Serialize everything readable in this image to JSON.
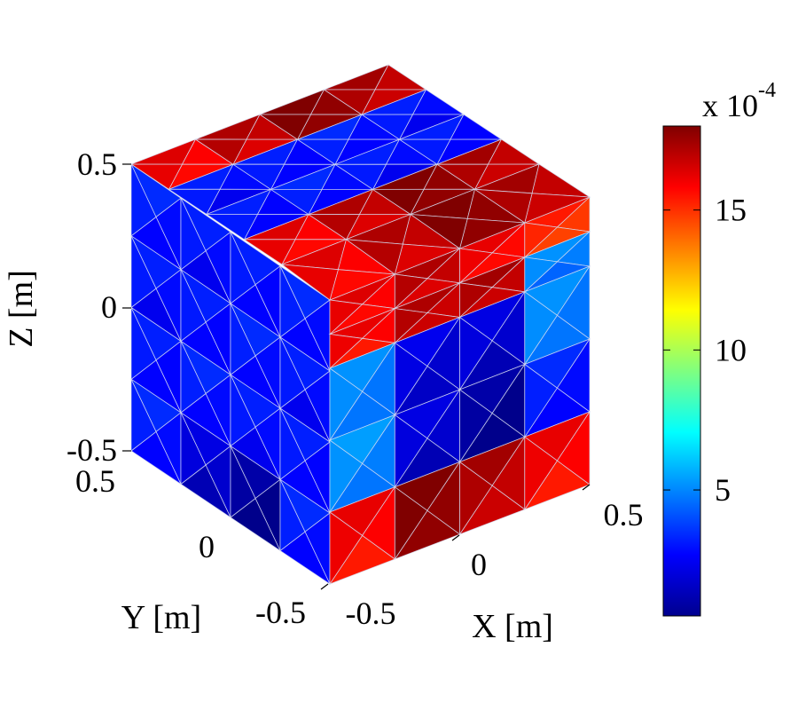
{
  "chart_data": {
    "type": "heatmap",
    "subtype": "3d-surface-mesh-cube",
    "title": "",
    "xlabel": "X [m]",
    "ylabel": "Y [m]",
    "zlabel": "Z [m]",
    "x_ticks": [
      "-0.5",
      "0",
      "0.5"
    ],
    "y_ticks": [
      "-0.5",
      "0",
      "0.5"
    ],
    "z_ticks": [
      "-0.5",
      "0",
      "0.5"
    ],
    "xlim": [
      -0.5,
      0.5
    ],
    "ylim": [
      -0.5,
      0.5
    ],
    "zlim": [
      -0.5,
      0.5
    ],
    "colorbar": {
      "colormap": "jet",
      "range": [
        0.5,
        18
      ],
      "ticks": [
        "5",
        "10",
        "15"
      ],
      "tick_values": [
        5,
        10,
        15
      ],
      "exponent_label": "x 10",
      "exponent_power": "-4"
    },
    "faces": {
      "top": {
        "description": "z = 0.5, rows run along x",
        "values": [
          [
            16,
            17,
            18,
            17
          ],
          [
            3,
            3,
            3,
            3
          ],
          [
            3,
            3,
            3,
            3
          ],
          [
            16,
            17,
            18,
            17
          ]
        ]
      },
      "front_x": {
        "description": "y = -0.5 face, rows top to bottom along z",
        "values": [
          [
            16,
            17,
            16,
            15
          ],
          [
            16,
            17,
            17,
            5
          ],
          [
            5,
            2,
            2,
            5
          ],
          [
            5,
            2,
            1,
            3
          ],
          [
            16,
            18,
            17,
            16
          ]
        ]
      },
      "left_y": {
        "description": "x = -0.5 face, mostly low values",
        "values": [
          [
            3,
            3,
            3,
            3
          ],
          [
            3,
            3,
            3,
            3
          ],
          [
            3,
            3,
            3,
            3
          ],
          [
            3,
            2,
            1,
            3
          ]
        ]
      }
    }
  }
}
